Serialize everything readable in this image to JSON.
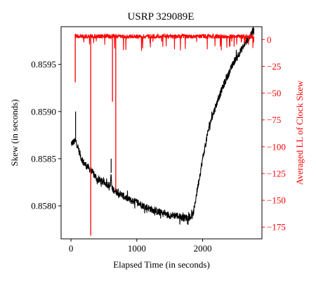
{
  "chart_data": {
    "type": "line",
    "title": "USRP 329089E",
    "xlabel": "Elapsed Time (in seconds)",
    "ylabel_left": "Skew (in seconds)",
    "ylabel_right": "Averaged LL of Clock Skew",
    "xlim": [
      -150,
      2900
    ],
    "ylim_left": [
      0.85765,
      0.8599
    ],
    "ylim_right": [
      -186,
      12
    ],
    "x_ticks": [
      0,
      1000,
      2000
    ],
    "x_tick_labels": [
      "0",
      "1000",
      "2000"
    ],
    "y_left_ticks": [
      0.858,
      0.8585,
      0.859,
      0.8595
    ],
    "y_left_tick_labels": [
      "0.8580",
      "0.8585",
      "0.8590",
      "0.8595"
    ],
    "y_right_ticks": [
      -175,
      -150,
      -125,
      -100,
      -75,
      -50,
      -25,
      0
    ],
    "y_right_tick_labels": [
      "−175",
      "−150",
      "−125",
      "−100",
      "−75",
      "−50",
      "−25",
      "0"
    ],
    "colors": {
      "left_series": "#000000",
      "right_series": "#ff0000",
      "right_axis": "#ff0000"
    },
    "grid": false,
    "series": [
      {
        "axis": "left",
        "color": "#000000",
        "x": [
          0,
          50,
          65,
          70,
          80,
          150,
          200,
          300,
          400,
          500,
          600,
          610,
          620,
          700,
          800,
          900,
          1000,
          1100,
          1200,
          1300,
          1400,
          1500,
          1600,
          1700,
          1800,
          1850,
          1880,
          1900,
          1950,
          2000,
          2100,
          2200,
          2300,
          2400,
          2500,
          2600,
          2700,
          2750,
          2780
        ],
        "y": [
          0.85866,
          0.85868,
          0.85868,
          0.85868,
          0.85868,
          0.85852,
          0.85845,
          0.85838,
          0.85828,
          0.85825,
          0.85821,
          0.85835,
          0.85818,
          0.85815,
          0.8581,
          0.85806,
          0.85804,
          0.858,
          0.85797,
          0.85794,
          0.85792,
          0.8579,
          0.8579,
          0.85787,
          0.85788,
          0.8579,
          0.858,
          0.8581,
          0.8583,
          0.8585,
          0.85885,
          0.85906,
          0.85925,
          0.85941,
          0.85956,
          0.85967,
          0.85978,
          0.85984,
          0.85986
        ],
        "spikes": [
          {
            "x": 70,
            "y": 0.859
          },
          {
            "x": 610,
            "y": 0.8585
          }
        ]
      },
      {
        "axis": "right",
        "color": "#ff0000",
        "x": [
          60,
          2780
        ],
        "y": [
          5,
          5
        ],
        "spikes": [
          {
            "x": 65,
            "y": -40
          },
          {
            "x": 300,
            "y": -183
          },
          {
            "x": 630,
            "y": -58
          },
          {
            "x": 680,
            "y": -140
          }
        ]
      }
    ]
  }
}
